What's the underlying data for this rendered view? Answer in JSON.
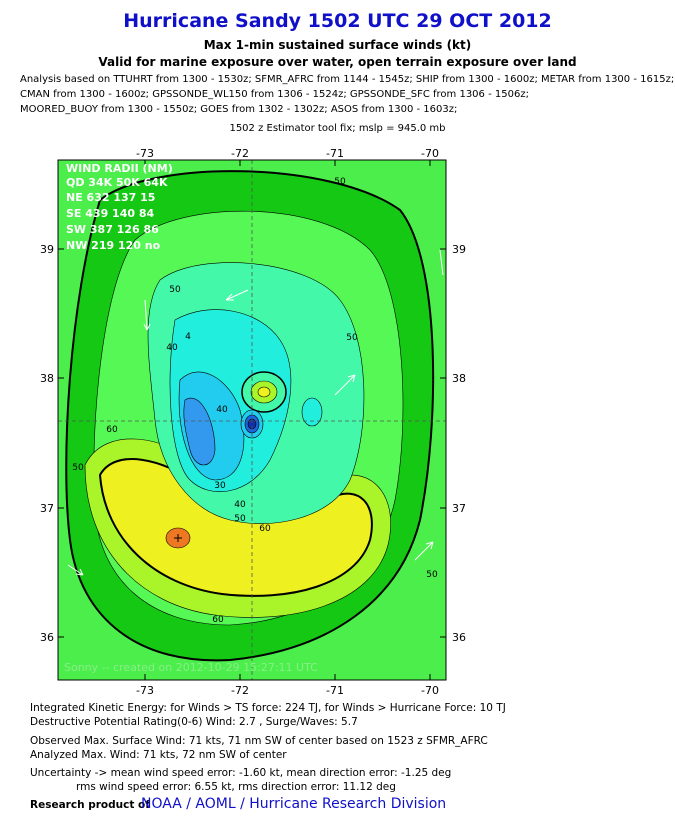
{
  "header": {
    "title": "Hurricane Sandy 1502 UTC 29 OCT 2012",
    "subtitle": "Max 1-min sustained surface winds (kt)",
    "validity": "Valid for marine exposure over water, open terrain exposure over land"
  },
  "analysis": [
    "Analysis based on TTUHRT from 1300 - 1530z; SFMR_AFRC from 1144 - 1545z; SHIP from 1300 - 1600z; METAR from 1300 - 1615z;",
    "CMAN from 1300 - 1600z; GPSSONDE_WL150 from 1306 - 1524z; GPSSONDE_SFC from 1306 - 1506z;",
    "MOORED_BUOY from 1300 - 1550z; GOES from 1302 - 1302z; ASOS from 1300 - 1603z;"
  ],
  "fix": "1502 z Estimator tool fix; mslp = 945.0 mb",
  "map": {
    "lon_labels": [
      "-73",
      "-72",
      "-71",
      "-70"
    ],
    "lat_labels": [
      "39",
      "38",
      "37",
      "36"
    ],
    "wind_radii": {
      "title": "WIND RADII (NM)",
      "header": "QD 34K 50K 64K",
      "rows": [
        "NE 632 137  15",
        "SE 439 140  84",
        "SW 387 126  86",
        "NW 219 120  no"
      ]
    },
    "contour_labels": [
      "50",
      "50",
      "40",
      "4",
      "50",
      "60",
      "50",
      "40",
      "30",
      "40",
      "50",
      "60",
      "60",
      "50"
    ],
    "credit": "Sonny -- created on 2012-10-29 15:27:11 UTC"
  },
  "footer": {
    "ike": "Integrated Kinetic Energy: for Winds > TS force: 224 TJ, for Winds > Hurricane Force: 10 TJ",
    "dpr": "Destructive Potential Rating(0-6)  Wind: 2.7 , Surge/Waves: 5.7",
    "observed": "Observed Max. Surface Wind: 71 kts, 71 nm SW of center based on 1523 z SFMR_AFRC",
    "analyzed": "Analyzed Max. Wind: 71 kts, 72 nm  SW of center",
    "uncertainty": "Uncertainty -> mean wind speed error:  -1.60 kt, mean direction error:  -1.25 deg",
    "rms": "rms wind speed error: 6.55 kt, rms direction error: 11.12 deg",
    "research": "Research product of",
    "organization": "NOAA / AOML / Hurricane Research Division"
  }
}
